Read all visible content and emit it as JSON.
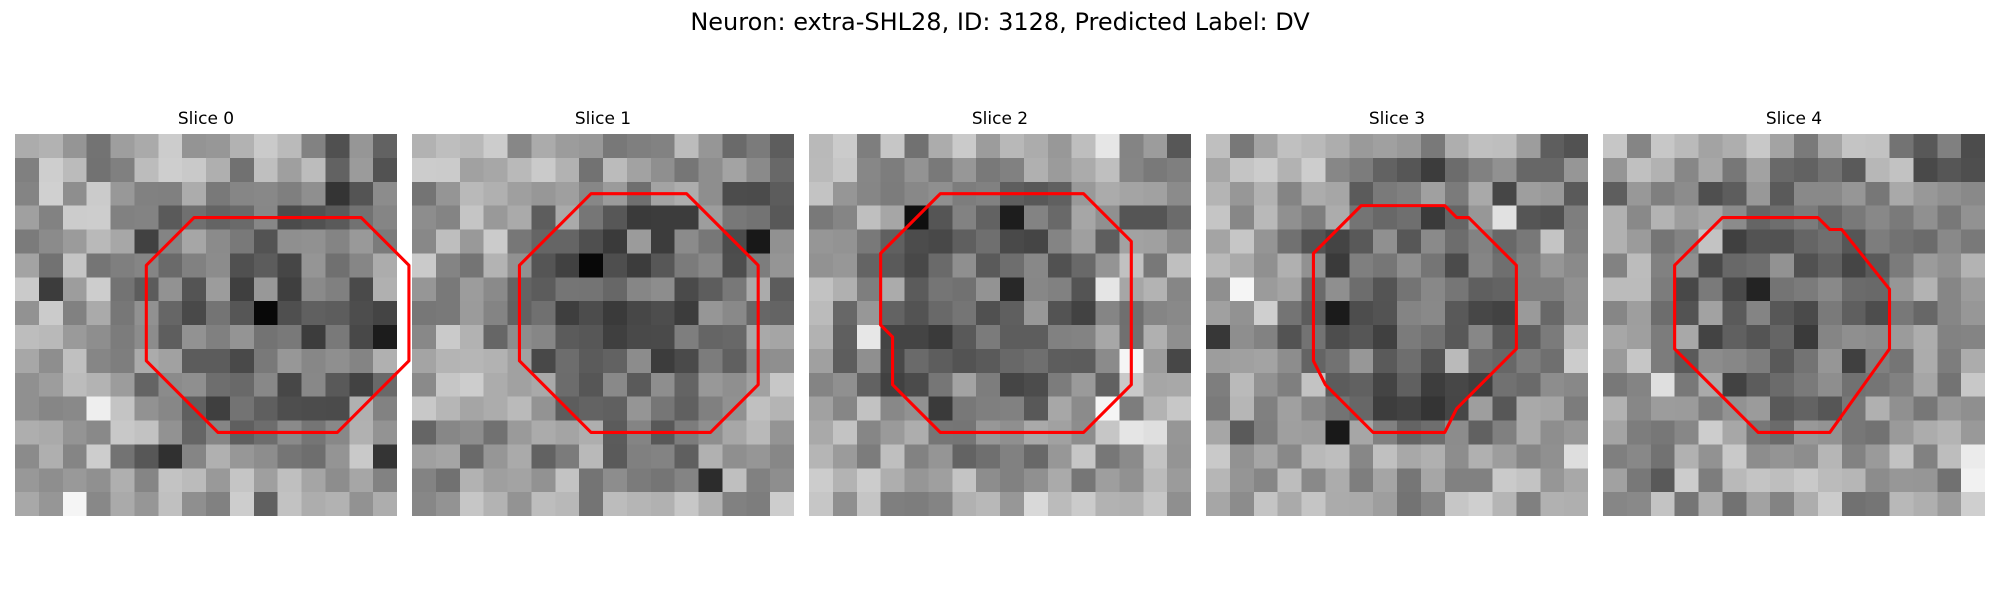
{
  "figure": {
    "title": "Neuron: extra-SHL28, ID: 3128, Predicted Label: DV"
  },
  "panels": [
    {
      "title": "Slice 0",
      "contour": [
        [
          14.5,
          3.5
        ],
        [
          16.5,
          5.5
        ],
        [
          16.5,
          9.5
        ],
        [
          13.5,
          12.5
        ],
        [
          8.5,
          12.5
        ],
        [
          5.5,
          9.5
        ],
        [
          5.5,
          5.5
        ],
        [
          7.5,
          3.5
        ]
      ]
    },
    {
      "title": "Slice 1",
      "contour": [
        [
          11.5,
          2.5
        ],
        [
          14.5,
          5.5
        ],
        [
          14.5,
          10.5
        ],
        [
          12.5,
          12.5
        ],
        [
          7.5,
          12.5
        ],
        [
          4.5,
          9.5
        ],
        [
          4.5,
          5.5
        ],
        [
          7.5,
          2.5
        ]
      ]
    },
    {
      "title": "Slice 2",
      "contour": [
        [
          11.5,
          2.5
        ],
        [
          13.5,
          4.5
        ],
        [
          13.5,
          10.5
        ],
        [
          11.5,
          12.5
        ],
        [
          5.5,
          12.5
        ],
        [
          3.5,
          10.5
        ],
        [
          3.5,
          8.5
        ],
        [
          3.0,
          8.0
        ],
        [
          3.0,
          5.0
        ],
        [
          5.5,
          2.5
        ]
      ]
    },
    {
      "title": "Slice 3",
      "contour": [
        [
          10.0,
          3.0
        ],
        [
          10.5,
          3.5
        ],
        [
          11.0,
          3.5
        ],
        [
          13.0,
          5.5
        ],
        [
          13.0,
          9.0
        ],
        [
          10.5,
          11.5
        ],
        [
          10.0,
          12.5
        ],
        [
          7.0,
          12.5
        ],
        [
          5.0,
          10.5
        ],
        [
          4.5,
          9.5
        ],
        [
          4.5,
          5.0
        ],
        [
          6.5,
          3.0
        ]
      ]
    },
    {
      "title": "Slice 4",
      "contour": [
        [
          9.0,
          3.5
        ],
        [
          9.5,
          4.0
        ],
        [
          10.0,
          4.0
        ],
        [
          12.0,
          6.5
        ],
        [
          12.0,
          9.0
        ],
        [
          9.5,
          12.5
        ],
        [
          6.5,
          12.5
        ],
        [
          3.0,
          9.0
        ],
        [
          3.0,
          5.5
        ],
        [
          5.0,
          3.5
        ]
      ]
    }
  ]
}
